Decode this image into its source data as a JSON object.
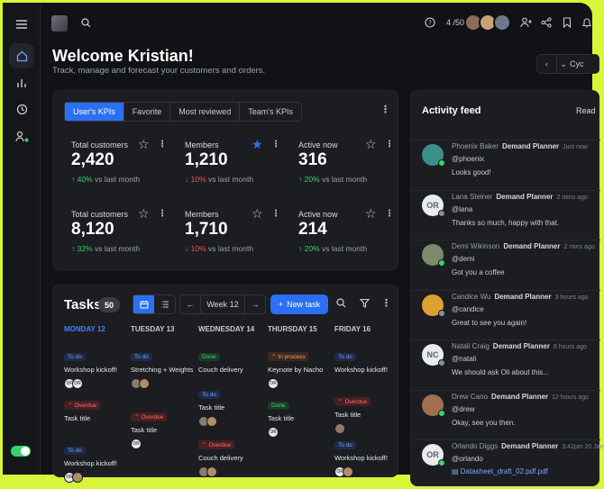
{
  "topbar": {
    "counter": "4 /50"
  },
  "header": {
    "title": "Welcome Kristian!",
    "subtitle": "Track, manage and forecast your customers and orders.",
    "cycle_label": "Cyc"
  },
  "kpi_tabs": [
    {
      "label": "User's KPIs",
      "active": true
    },
    {
      "label": "Favorite",
      "active": false
    },
    {
      "label": "Most reviewed",
      "active": false
    },
    {
      "label": "Team's KPIs",
      "active": false
    }
  ],
  "kpis": [
    {
      "label": "Total customers",
      "value": "2,420",
      "change": "40%",
      "dir": "up",
      "vs": "vs last month",
      "starred": false
    },
    {
      "label": "Members",
      "value": "1,210",
      "change": "10%",
      "dir": "down",
      "vs": "vs last month",
      "starred": true
    },
    {
      "label": "Active now",
      "value": "316",
      "change": "20%",
      "dir": "up",
      "vs": "vs last month",
      "starred": false
    },
    {
      "label": "Total customers",
      "value": "8,120",
      "change": "32%",
      "dir": "up",
      "vs": "vs last month",
      "starred": false
    },
    {
      "label": "Members",
      "value": "1,710",
      "change": "10%",
      "dir": "down",
      "vs": "vs last month",
      "starred": false
    },
    {
      "label": "Active now",
      "value": "214",
      "change": "20%",
      "dir": "up",
      "vs": "vs last month",
      "starred": false
    }
  ],
  "tasks": {
    "title": "Tasks",
    "count": "50",
    "week": "Week 12",
    "new_task": "New task",
    "columns": [
      {
        "day": "MONDAY 12",
        "today": true,
        "items": [
          {
            "status": "To do",
            "kind": "todo",
            "title": "Workshop kickoff!",
            "avatars": [
              "OF",
              "OR"
            ]
          },
          {
            "status": "Overdue",
            "kind": "over",
            "title": "Task title",
            "avatars": []
          },
          {
            "status": "To do",
            "kind": "todo",
            "title": "Workshop kickoff!",
            "avatars": [
              "OR",
              ""
            ]
          }
        ]
      },
      {
        "day": "TUESDAY 13",
        "today": false,
        "items": [
          {
            "status": "To do",
            "kind": "todo",
            "title": "Stretching + Weights",
            "avatars": [
              "",
              ""
            ]
          },
          {
            "status": "Overdue",
            "kind": "over",
            "title": "Task title",
            "avatars": [
              "OR"
            ]
          }
        ]
      },
      {
        "day": "WEDNESDAY 14",
        "today": false,
        "items": [
          {
            "status": "Done",
            "kind": "done",
            "title": "Couch delivery",
            "avatars": []
          },
          {
            "status": "To do",
            "kind": "todo",
            "title": "Task title",
            "avatars": [
              "",
              ""
            ]
          },
          {
            "status": "Overdue",
            "kind": "over",
            "title": "Couch delivery",
            "avatars": [
              "",
              ""
            ]
          }
        ]
      },
      {
        "day": "THURSDAY 15",
        "today": false,
        "items": [
          {
            "status": "In process",
            "kind": "prog",
            "title": "Keynote by Nacho",
            "avatars": [
              "OR"
            ]
          },
          {
            "status": "Done",
            "kind": "done",
            "title": "Task title",
            "avatars": [
              "OR"
            ]
          }
        ]
      },
      {
        "day": "FRIDAY 16",
        "today": false,
        "items": [
          {
            "status": "To do",
            "kind": "todo",
            "title": "Workshop kickoff!",
            "avatars": []
          },
          {
            "status": "Overdue",
            "kind": "over",
            "title": "Task title",
            "avatars": [
              ""
            ]
          },
          {
            "status": "To do",
            "kind": "todo",
            "title": "Workshop kickoff!",
            "avatars": [
              "OF",
              ""
            ]
          }
        ]
      }
    ]
  },
  "activity": {
    "title": "Activity feed",
    "read_label": "Read",
    "items": [
      {
        "name": "Phoenix Baker",
        "role": "Demand Planner",
        "time": "Just now",
        "handle": "@phoenix",
        "message": "Looks good!",
        "initials": "",
        "color": "#3a8f8a",
        "status": "#37d46b"
      },
      {
        "name": "Lana Steiner",
        "role": "Demand Planner",
        "time": "2 mins ago",
        "handle": "@lana",
        "message": "Thanks so much, happy with that.",
        "initials": "OR",
        "color": "#e9ebef",
        "status": "#8a8f98"
      },
      {
        "name": "Demi Wikinson",
        "role": "Demand Planner",
        "time": "2 mins ago",
        "handle": "@demi",
        "message": "Got you a coffee",
        "initials": "",
        "color": "#7a8a6a",
        "status": "#37d46b"
      },
      {
        "name": "Candice Wu",
        "role": "Demand Planner",
        "time": "3 hours ago",
        "handle": "@candice",
        "message": "Great to see you again!",
        "initials": "",
        "color": "#e0a030",
        "status": "#8a8f98"
      },
      {
        "name": "Natali Craig",
        "role": "Demand Planner",
        "time": "6 hours ago",
        "handle": "@natali",
        "message": "We should ask Oli about this...",
        "initials": "NC",
        "color": "#e9ebef",
        "status": "#8a8f98"
      },
      {
        "name": "Drew Cano",
        "role": "Demand Planner",
        "time": "12 hours ago",
        "handle": "@drew",
        "message": "Okay, see you then.",
        "initials": "",
        "color": "#a07050",
        "status": "#37d46b"
      },
      {
        "name": "Orlando Diggs",
        "role": "Demand Planner",
        "time": "3:42pm 20 Jan",
        "handle": "@orlando",
        "message": "",
        "file": "Datasheet_draft_02.pdf.pdf",
        "initials": "OR",
        "color": "#e9ebef",
        "status": "#37d46b"
      }
    ]
  }
}
